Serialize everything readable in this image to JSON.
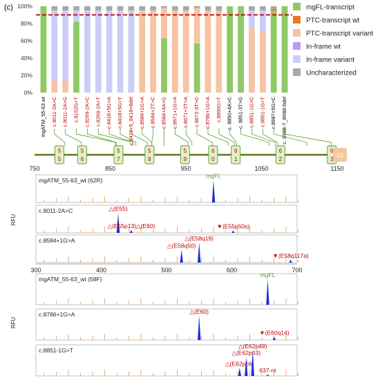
{
  "panel_label": "(c)",
  "chart_data": [
    {
      "type": "bar",
      "stacked": true,
      "ylim": [
        0,
        100
      ],
      "yticks": [
        "0%",
        "20%",
        "40%",
        "60%",
        "80%",
        "100%"
      ],
      "threshold_line": 90,
      "categories": [
        "mgATM_55-63 wt",
        "c.8011-2A>C",
        "c.8011-2A>G",
        "c.8152G>T",
        "c.8269-2A>C",
        "c.8269-2A>T",
        "c.8418+5G>A",
        "c.8418+5G>T",
        "c.8418+5_8418+8del",
        "c.8584+1G>A",
        "c.8584+2T>C",
        "c.8584+4A>G",
        "c.8671+1G>A",
        "c.8671+2T>A",
        "c.8672-3T>G",
        "c.8786+1G>A",
        "c.8850G>T",
        "c. 8850+4A>C",
        "c. 8851-3T>G",
        "c.8851-1G>C",
        "c.8851-1G>T",
        "c.8987+5G>C",
        "c. 8988-7_8988-5del"
      ],
      "category_colors": [
        "#000000",
        "#c00000",
        "#c00000",
        "#c00000",
        "#c00000",
        "#c00000",
        "#c00000",
        "#c00000",
        "#c00000",
        "#c00000",
        "#c00000",
        "#c00000",
        "#c00000",
        "#c00000",
        "#c00000",
        "#c00000",
        "#c00000",
        "#000000",
        "#000000",
        "#c00000",
        "#c00000",
        "#000000",
        "#000000"
      ],
      "series": [
        {
          "name": "mgFL-transcript",
          "color": "#8fc866",
          "values": [
            100,
            0,
            0,
            82,
            0,
            0,
            0,
            0,
            0,
            0,
            0,
            63,
            0,
            0,
            57,
            0,
            0,
            100,
            100,
            0,
            0,
            95,
            100
          ]
        },
        {
          "name": "PTC-transcript wt",
          "color": "#ee7722",
          "values": [
            0,
            0,
            0,
            0,
            0,
            0,
            0,
            0,
            0,
            0,
            0,
            0,
            0,
            0,
            0,
            0,
            0,
            0,
            0,
            0,
            0,
            2,
            0
          ]
        },
        {
          "name": "PTC-transcript variant",
          "color": "#f7c3a3",
          "values": [
            0,
            14,
            14,
            0,
            0,
            0,
            0,
            0,
            0,
            95,
            95,
            35,
            95,
            95,
            41,
            95,
            95,
            0,
            0,
            75,
            70,
            0,
            0
          ]
        },
        {
          "name": "In-frame wt",
          "color": "#bb99f0",
          "values": [
            0,
            0,
            0,
            0,
            0,
            0,
            0,
            0,
            0,
            0,
            0,
            0,
            0,
            0,
            0,
            0,
            0,
            0,
            0,
            0,
            0,
            0,
            0
          ]
        },
        {
          "name": "In-frame variant",
          "color": "#cbcdf6",
          "values": [
            0,
            81,
            81,
            13,
            95,
            95,
            95,
            95,
            95,
            0,
            0,
            0,
            0,
            0,
            0,
            0,
            0,
            0,
            0,
            20,
            25,
            0,
            0
          ]
        },
        {
          "name": "Uncharacterized",
          "color": "#a8a8a8",
          "values": [
            0,
            5,
            5,
            5,
            5,
            5,
            5,
            5,
            5,
            5,
            5,
            2,
            5,
            5,
            2,
            5,
            5,
            0,
            0,
            5,
            5,
            3,
            0
          ]
        }
      ]
    },
    {
      "type": "gene-map",
      "xlim": [
        750,
        1150
      ],
      "xticks": [
        750,
        850,
        950,
        1050,
        1150
      ],
      "exons": [
        {
          "label": "5 5",
          "start": 777,
          "end": 782
        },
        {
          "label": "5 6",
          "start": 807,
          "end": 818
        },
        {
          "label": "5 7",
          "start": 855,
          "end": 860
        },
        {
          "label": "5 8",
          "start": 896,
          "end": 904
        },
        {
          "label": "5 9",
          "start": 943,
          "end": 950
        },
        {
          "label": "6 0",
          "start": 980,
          "end": 990
        },
        {
          "label": "6 1",
          "start": 1010,
          "end": 1017
        },
        {
          "label": "6 2",
          "start": 1069,
          "end": 1074
        },
        {
          "label": "6 3",
          "start": 1137,
          "end": 1146
        }
      ],
      "vector_label": "V2"
    },
    {
      "type": "electropherogram",
      "group": "upper",
      "xlim": [
        300,
        700
      ],
      "xticks": [
        300,
        400,
        500,
        600,
        700
      ],
      "ylabel": "RFU",
      "traces": [
        {
          "name": "mgATM_55-63_wt (62R)",
          "peaks": [
            {
              "x": 572,
              "h": 0.95,
              "label": "mgFL",
              "color": "#5d9b3b",
              "marker": ""
            }
          ]
        },
        {
          "name": "c.8011-2A>C",
          "peaks": [
            {
              "x": 426,
              "h": 0.85,
              "label": "△(E55)",
              "color": "#c00000",
              "marker": ""
            },
            {
              "x": 446,
              "h": 0.12,
              "label": "△(E55p13)△(E60)",
              "color": "#c00000",
              "marker": ""
            },
            {
              "x": 602,
              "h": 0.1,
              "label": "(E55p50s)",
              "color": "#c00000",
              "marker": "▼"
            }
          ]
        },
        {
          "name": "c.8584+1G>A",
          "peaks": [
            {
              "x": 523,
              "h": 0.55,
              "label": "△(E58q50)",
              "color": "#c00000",
              "marker": ""
            },
            {
              "x": 550,
              "h": 0.85,
              "label": "△(E58q19)",
              "color": "#c00000",
              "marker": ""
            },
            {
              "x": 690,
              "h": 0.12,
              "label": "(E58q117a)",
              "color": "#c00000",
              "marker": "▼"
            }
          ]
        }
      ]
    },
    {
      "type": "electropherogram",
      "group": "lower",
      "xlim": [
        300,
        700
      ],
      "ylabel": "RFU",
      "traces": [
        {
          "name": "mgATM_55-63_wt (58F)",
          "peaks": [
            {
              "x": 655,
              "h": 0.95,
              "label": "mgFL",
              "color": "#5d9b3b",
              "marker": ""
            }
          ]
        },
        {
          "name": "c.8786+1G>A",
          "peaks": [
            {
              "x": 550,
              "h": 0.9,
              "label": "△(E60)",
              "color": "#c00000",
              "marker": ""
            },
            {
              "x": 665,
              "h": 0.12,
              "label": "(E60q14)",
              "color": "#c00000",
              "marker": "▼"
            }
          ]
        },
        {
          "name": "c.8851-1G>T",
          "peaks": [
            {
              "x": 612,
              "h": 0.3,
              "label": "△(E62p66)",
              "color": "#c00000",
              "marker": ""
            },
            {
              "x": 622,
              "h": 0.7,
              "label": "△(E62p63)",
              "color": "#c00000",
              "marker": ""
            },
            {
              "x": 632,
              "h": 0.95,
              "label": "△(E62p49)",
              "color": "#c00000",
              "marker": ""
            },
            {
              "x": 655,
              "h": 0.05,
              "label": "637-nt",
              "color": "#c00000",
              "marker": ""
            }
          ]
        }
      ]
    }
  ]
}
